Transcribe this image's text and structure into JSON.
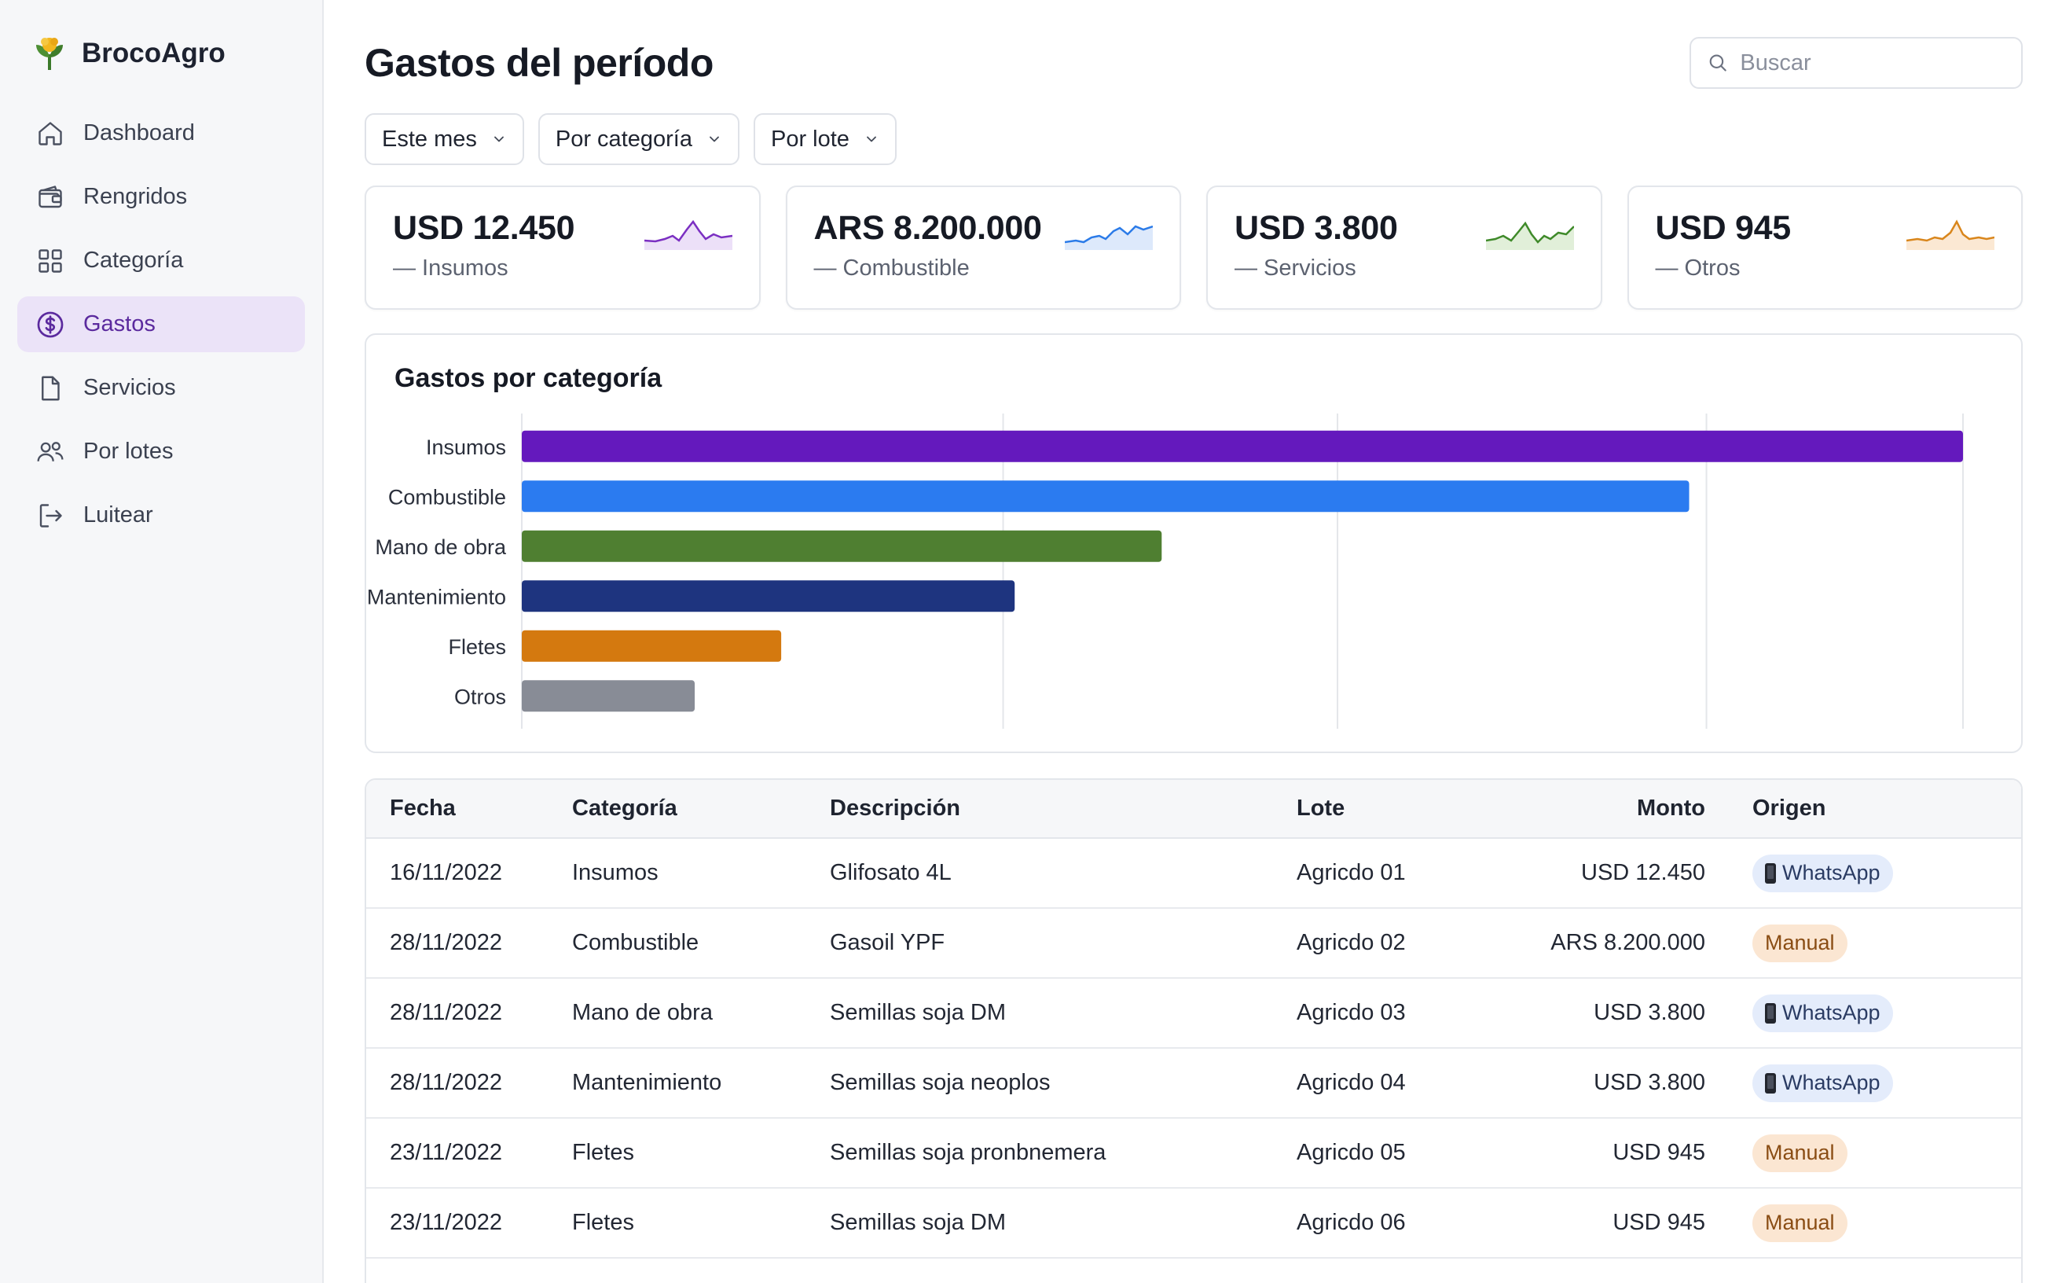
{
  "app": {
    "brand": "BrocoAgro",
    "colors": {
      "accent": "#5b2a9e",
      "active_bg": "#ebe3f8"
    }
  },
  "sidebar": {
    "items": [
      {
        "label": "Dashboard",
        "icon": "home-icon",
        "active": false
      },
      {
        "label": "Rengridos",
        "icon": "wallet-icon",
        "active": false
      },
      {
        "label": "Categoría",
        "icon": "grid-icon",
        "active": false
      },
      {
        "label": "Gastos",
        "icon": "dollar-circle-icon",
        "active": true
      },
      {
        "label": "Servicios",
        "icon": "document-icon",
        "active": false
      },
      {
        "label": "Por lotes",
        "icon": "users-icon",
        "active": false
      },
      {
        "label": "Luitear",
        "icon": "logout-icon",
        "active": false
      }
    ]
  },
  "header": {
    "title": "Gastos del período",
    "search_placeholder": "Buscar"
  },
  "filters": [
    {
      "label": "Este mes"
    },
    {
      "label": "Por categoría"
    },
    {
      "label": "Por lote"
    }
  ],
  "kpis": [
    {
      "value": "USD 12.450",
      "label": "— Insumos",
      "color": "#7b2fc2"
    },
    {
      "value": "ARS 8.200.000",
      "label": "— Combustible",
      "color": "#2b7be8"
    },
    {
      "value": "USD 3.800",
      "label": "— Servicios",
      "color": "#3f8a2a"
    },
    {
      "value": "USD 945",
      "label": "— Otros",
      "color": "#d9861c"
    }
  ],
  "chart": {
    "title": "Gastos por categoría"
  },
  "chart_data": {
    "type": "bar",
    "orientation": "horizontal",
    "categories": [
      "Insumos",
      "Combustible",
      "Mano de obra",
      "Mantenimiento",
      "Fletes",
      "Otros"
    ],
    "values": [
      100,
      81,
      44.4,
      34.2,
      18,
      12
    ],
    "colors": [
      "#6419bd",
      "#2b7bf0",
      "#4f7f31",
      "#1e347f",
      "#d4790f",
      "#888c96"
    ],
    "xlim": [
      0,
      100
    ],
    "grid": true
  },
  "table": {
    "headers": {
      "fecha": "Fecha",
      "categoria": "Categoría",
      "descripcion": "Descripción",
      "lote": "Lote",
      "monto": "Monto",
      "origen": "Origen"
    },
    "rows": [
      {
        "fecha": "16/11/2022",
        "categoria": "Insumos",
        "descripcion": "Glifosato 4L",
        "lote": "Agricdo 01",
        "monto": "USD 12.450",
        "origen": "WhatsApp",
        "origen_type": "wa"
      },
      {
        "fecha": "28/11/2022",
        "categoria": "Combustible",
        "descripcion": "Gasoil YPF",
        "lote": "Agricdo 02",
        "monto": "ARS 8.200.000",
        "origen": "Manual",
        "origen_type": "man"
      },
      {
        "fecha": "28/11/2022",
        "categoria": "Mano de obra",
        "descripcion": "Semillas soja DM",
        "lote": "Agricdo 03",
        "monto": "USD 3.800",
        "origen": "WhatsApp",
        "origen_type": "wa"
      },
      {
        "fecha": "28/11/2022",
        "categoria": "Mantenimiento",
        "descripcion": "Semillas soja neoplos",
        "lote": "Agricdo 04",
        "monto": "USD 3.800",
        "origen": "WhatsApp",
        "origen_type": "wa"
      },
      {
        "fecha": "23/11/2022",
        "categoria": "Fletes",
        "descripcion": "Semillas soja pronbnemera",
        "lote": "Agricdo 05",
        "monto": "USD 945",
        "origen": "Manual",
        "origen_type": "man"
      },
      {
        "fecha": "23/11/2022",
        "categoria": "Fletes",
        "descripcion": "Semillas soja DM",
        "lote": "Agricdo 06",
        "monto": "USD 945",
        "origen": "Manual",
        "origen_type": "man"
      }
    ]
  }
}
